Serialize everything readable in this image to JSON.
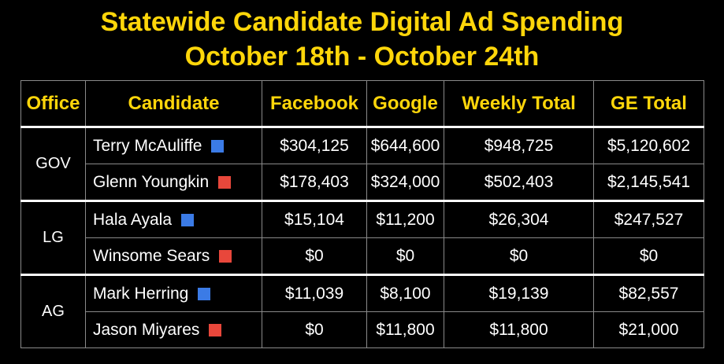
{
  "title": {
    "line1": "Statewide Candidate Digital Ad Spending",
    "line2": "October 18th - October 24th"
  },
  "colors": {
    "title": "#ffd60a",
    "democrat": "#3b7be6",
    "republican": "#e8473b"
  },
  "table": {
    "headers": [
      "Office",
      "Candidate",
      "Facebook",
      "Google",
      "Weekly Total",
      "GE Total"
    ],
    "groups": [
      {
        "office": "GOV",
        "rows": [
          {
            "candidate": "Terry McAuliffe",
            "party_color": "#3b7be6",
            "facebook": "$304,125",
            "google": "$644,600",
            "weekly_total": "$948,725",
            "ge_total": "$5,120,602"
          },
          {
            "candidate": "Glenn Youngkin",
            "party_color": "#e8473b",
            "facebook": "$178,403",
            "google": "$324,000",
            "weekly_total": "$502,403",
            "ge_total": "$2,145,541"
          }
        ]
      },
      {
        "office": "LG",
        "rows": [
          {
            "candidate": "Hala Ayala",
            "party_color": "#3b7be6",
            "facebook": "$15,104",
            "google": "$11,200",
            "weekly_total": "$26,304",
            "ge_total": "$247,527"
          },
          {
            "candidate": "Winsome Sears",
            "party_color": "#e8473b",
            "facebook": "$0",
            "google": "$0",
            "weekly_total": "$0",
            "ge_total": "$0"
          }
        ]
      },
      {
        "office": "AG",
        "rows": [
          {
            "candidate": "Mark Herring",
            "party_color": "#3b7be6",
            "facebook": "$11,039",
            "google": "$8,100",
            "weekly_total": "$19,139",
            "ge_total": "$82,557"
          },
          {
            "candidate": "Jason Miyares",
            "party_color": "#e8473b",
            "facebook": "$0",
            "google": "$11,800",
            "weekly_total": "$11,800",
            "ge_total": "$21,000"
          }
        ]
      }
    ]
  }
}
